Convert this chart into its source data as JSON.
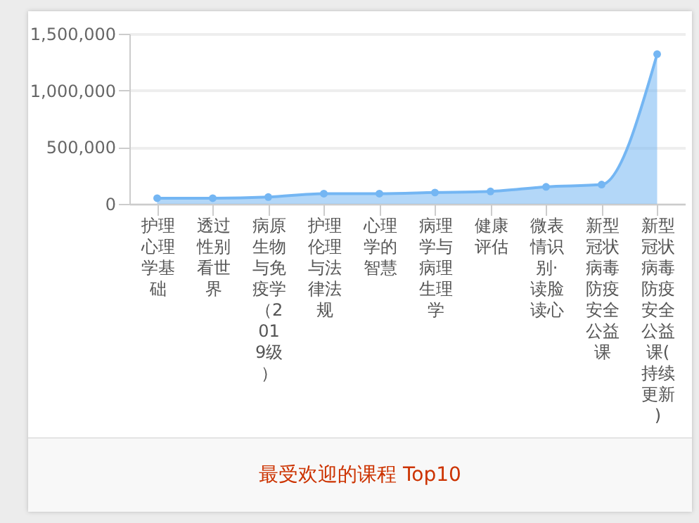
{
  "chart_data": {
    "type": "area",
    "title": "最受欢迎的课程 Top10",
    "categories": [
      "护理心理学基础",
      "透过性别看世界",
      "病原生物与免疫学（2019级）",
      "护理伦理与法律法规",
      "心理学的智慧",
      "病理学与病理生理学",
      "健康评估",
      "微表情识别·读脸读心",
      "新型冠状病毒防疫安全公益课",
      "新型冠状病毒防疫安全公益课(持续更新)"
    ],
    "series": [
      {
        "color": "#74b6f3",
        "values": [
          50000,
          50000,
          60000,
          90000,
          90000,
          100000,
          110000,
          150000,
          170000,
          1320000
        ]
      }
    ],
    "ylim": [
      0,
      1500000
    ],
    "yticks": [
      0,
      {
        "value": 500000,
        "label": "500,000"
      },
      {
        "value": 1000000,
        "label": "1,000,000"
      },
      {
        "value": 1500000,
        "label": "1,500,000"
      }
    ],
    "grid": "y",
    "marker": "circle"
  }
}
